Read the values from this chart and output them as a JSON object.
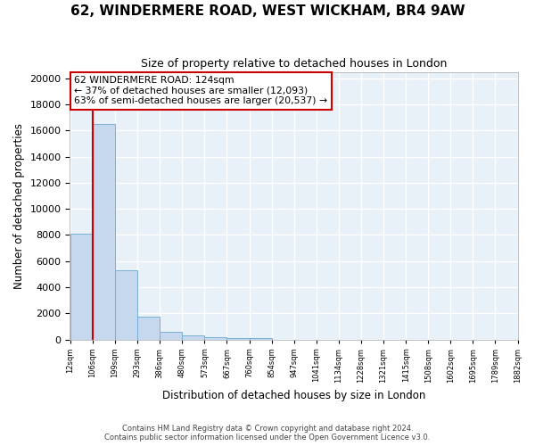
{
  "title": "62, WINDERMERE ROAD, WEST WICKHAM, BR4 9AW",
  "subtitle": "Size of property relative to detached houses in London",
  "xlabel": "Distribution of detached houses by size in London",
  "ylabel": "Number of detached properties",
  "bar_values": [
    8100,
    16500,
    5300,
    1750,
    600,
    340,
    170,
    110,
    100,
    0,
    0,
    0,
    0,
    0,
    0,
    0,
    0,
    0,
    0,
    0
  ],
  "categories": [
    "12sqm",
    "106sqm",
    "199sqm",
    "293sqm",
    "386sqm",
    "480sqm",
    "573sqm",
    "667sqm",
    "760sqm",
    "854sqm",
    "947sqm",
    "1041sqm",
    "1134sqm",
    "1228sqm",
    "1321sqm",
    "1415sqm",
    "1508sqm",
    "1602sqm",
    "1695sqm",
    "1789sqm",
    "1882sqm"
  ],
  "bar_color": "#c5d8ee",
  "bar_edge_color": "#7aafd4",
  "vline_color": "#cc0000",
  "annotation_title": "62 WINDERMERE ROAD: 124sqm",
  "annotation_line1": "← 37% of detached houses are smaller (12,093)",
  "annotation_line2": "63% of semi-detached houses are larger (20,537) →",
  "annotation_box_color": "#ffffff",
  "annotation_box_edge_color": "#cc0000",
  "ylim": [
    0,
    20500
  ],
  "yticks": [
    0,
    2000,
    4000,
    6000,
    8000,
    10000,
    12000,
    14000,
    16000,
    18000,
    20000
  ],
  "footer_line1": "Contains HM Land Registry data © Crown copyright and database right 2024.",
  "footer_line2": "Contains public sector information licensed under the Open Government Licence v3.0.",
  "bg_color": "#e8f0f8",
  "grid_color": "#ffffff",
  "fig_width": 6.0,
  "fig_height": 5.0,
  "dpi": 100
}
